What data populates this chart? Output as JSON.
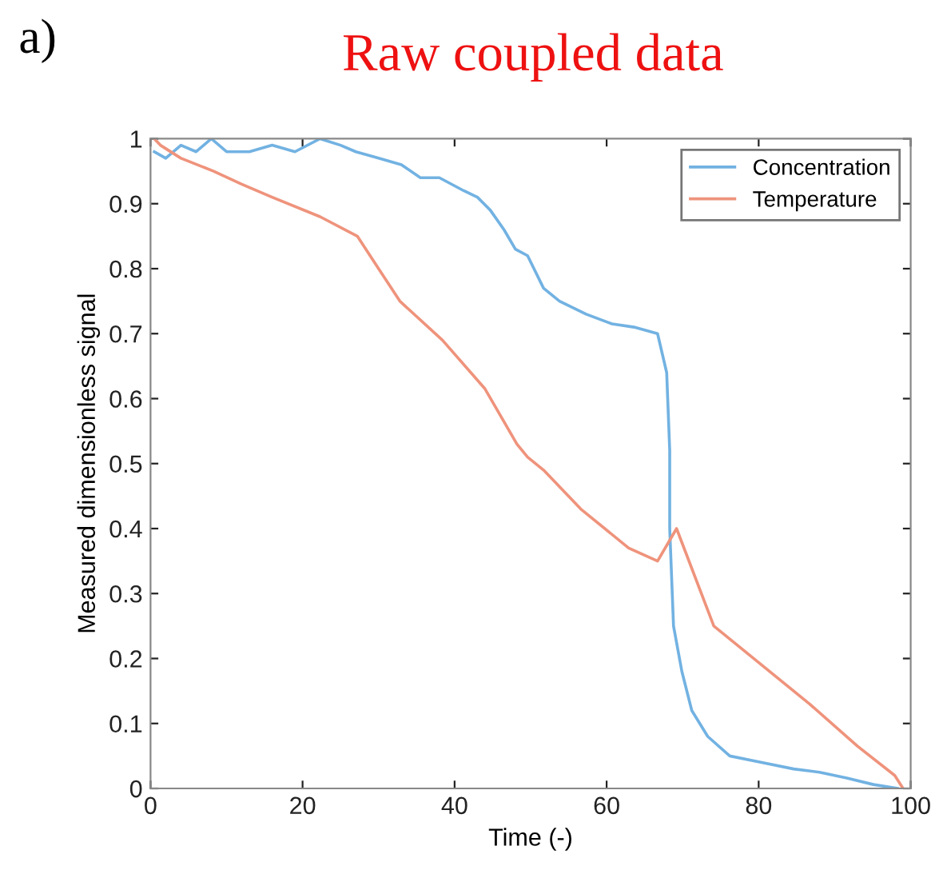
{
  "chart_data": {
    "type": "line",
    "title": "Raw coupled data",
    "xlabel": "Time (-)",
    "ylabel": "Measured dimensionless signal",
    "annotations": [
      "a)"
    ],
    "series": [
      {
        "name": "Concentration",
        "color": "#72b2e2",
        "x": [
          0.5,
          2,
          4,
          6,
          8,
          10,
          13,
          16,
          19,
          22.3,
          25,
          27,
          30,
          33,
          35.5,
          38,
          41.2,
          43,
          44.7,
          46.5,
          48,
          49.6,
          51.7,
          53.8,
          57.3,
          60.7,
          63.6,
          66.7,
          67.9,
          68.3,
          68.3,
          68.8,
          69.9,
          71.2,
          73.3,
          76.2,
          80.4,
          84.6,
          88,
          91.6,
          95.1,
          98.3
        ],
        "values": [
          0.98,
          0.97,
          0.99,
          0.98,
          1.0,
          0.98,
          0.98,
          0.99,
          0.98,
          1.0,
          0.99,
          0.98,
          0.97,
          0.96,
          0.94,
          0.94,
          0.92,
          0.91,
          0.89,
          0.86,
          0.83,
          0.82,
          0.77,
          0.75,
          0.73,
          0.715,
          0.71,
          0.7,
          0.64,
          0.52,
          0.4,
          0.25,
          0.18,
          0.12,
          0.08,
          0.05,
          0.04,
          0.03,
          0.025,
          0.016,
          0.006,
          0.0
        ]
      },
      {
        "name": "Temperature",
        "color": "#ef937c",
        "x": [
          0.5,
          1.3,
          4,
          8.3,
          12,
          16,
          22.3,
          27.2,
          30,
          32.8,
          38.4,
          44,
          48.2,
          49.6,
          51.7,
          56.6,
          62.9,
          66.7,
          69.2,
          74.1,
          80.4,
          86.7,
          93,
          97.9,
          99
        ],
        "values": [
          1.0,
          0.99,
          0.97,
          0.95,
          0.93,
          0.91,
          0.88,
          0.85,
          0.8,
          0.75,
          0.69,
          0.615,
          0.53,
          0.51,
          0.49,
          0.43,
          0.37,
          0.35,
          0.4,
          0.25,
          0.19,
          0.13,
          0.065,
          0.02,
          0.0
        ]
      }
    ],
    "xlim": [
      0,
      100
    ],
    "ylim": [
      0,
      1
    ],
    "xticks": [
      0,
      20,
      40,
      60,
      80,
      100
    ],
    "yticks": [
      0,
      0.1,
      0.2,
      0.3,
      0.4,
      0.5,
      0.6,
      0.7,
      0.8,
      0.9,
      1
    ],
    "grid": false,
    "legend": "top right",
    "marker": "none",
    "line_style": "solid"
  }
}
